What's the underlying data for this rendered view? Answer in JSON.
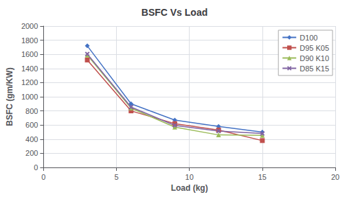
{
  "chart_data": {
    "type": "line",
    "title": "BSFC Vs Load",
    "x_label": "Load (kg)",
    "y_label": "BSFC (gm/KW)",
    "x": [
      3,
      6,
      9,
      12,
      15
    ],
    "series": [
      {
        "name": "D100",
        "color": "#4472C4",
        "marker": "diamond",
        "values": [
          1720,
          900,
          670,
          580,
          500
        ]
      },
      {
        "name": "D95 K05",
        "color": "#C0504D",
        "marker": "square",
        "values": [
          1520,
          800,
          620,
          530,
          380
        ]
      },
      {
        "name": "D90 K10",
        "color": "#9BBB59",
        "marker": "triangle",
        "values": [
          1590,
          840,
          570,
          460,
          455
        ]
      },
      {
        "name": "D85 K15",
        "color": "#8064A2",
        "marker": "x",
        "values": [
          1605,
          855,
          595,
          515,
          480
        ]
      }
    ],
    "xlim": [
      0,
      20
    ],
    "xticks": [
      0,
      5,
      10,
      15,
      20
    ],
    "ylim": [
      0,
      2000
    ],
    "yticks": [
      0,
      200,
      400,
      600,
      800,
      1000,
      1200,
      1400,
      1600,
      1800,
      2000
    ],
    "grid": true,
    "legend": "upper right"
  }
}
